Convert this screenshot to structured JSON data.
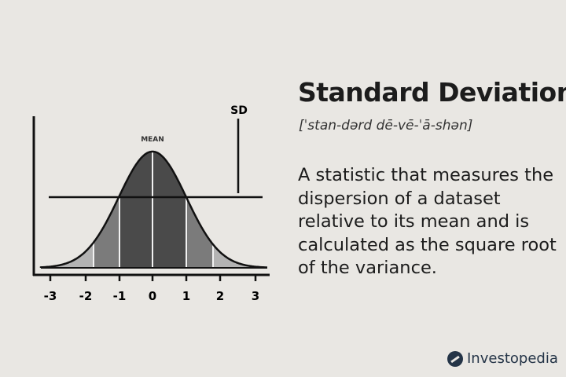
{
  "title": "Standard Deviation",
  "pronunciation": "[ˈstan-dərd dē-vē-ˈā-shən]",
  "definition": "A statistic that measures the dispersion of a dataset relative to its mean and is calculated as the square root of the variance.",
  "brand": "Investopedia",
  "diagram": {
    "mean_label": "MEAN",
    "sd_label": "SD",
    "tick_labels": [
      "-3",
      "-2",
      "-1",
      "0",
      "1",
      "2",
      "3"
    ],
    "colors": {
      "tail": "#b3b3b3",
      "middle": "#7b7b7b",
      "center": "#4a4a4a",
      "line": "#111111",
      "background": "#e9e7e3"
    }
  }
}
